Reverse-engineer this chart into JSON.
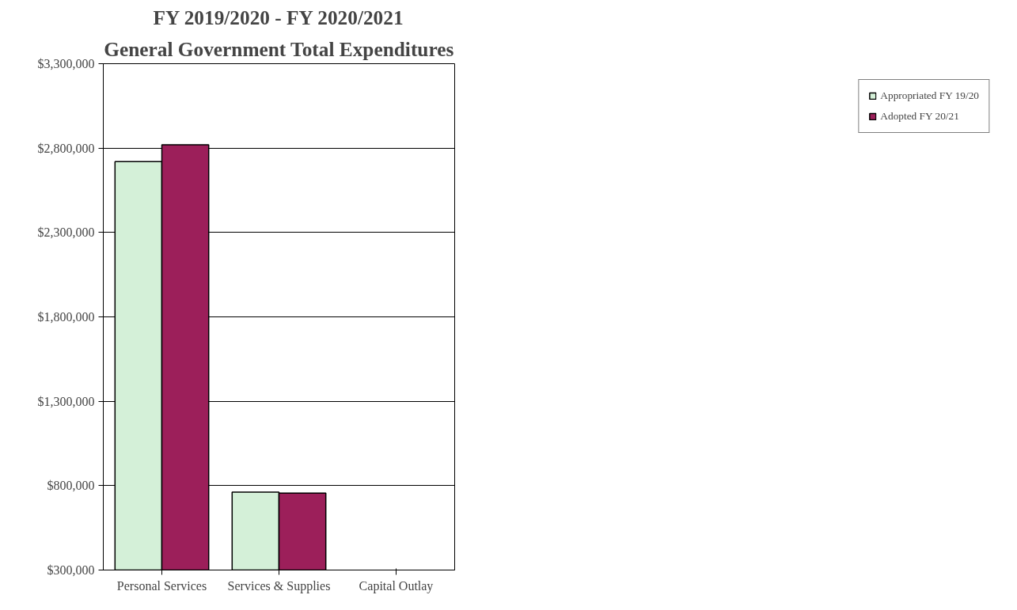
{
  "chart_data": {
    "type": "bar",
    "title": "FY 2019/2020 - FY 2020/2021",
    "subtitle": "General Government Total Expenditures",
    "categories": [
      "Personal Services",
      "Services & Supplies",
      "Capital Outlay"
    ],
    "series": [
      {
        "name": "Appropriated FY 19/20",
        "color": "#d4f0d8",
        "values": [
          2720000,
          762000,
          null
        ]
      },
      {
        "name": "Adopted FY 20/21",
        "color": "#9c1f5a",
        "values": [
          2820000,
          756000,
          null
        ]
      }
    ],
    "ylim": [
      300000,
      3300000
    ],
    "yticks": [
      {
        "value": 300000,
        "label": "$300,000"
      },
      {
        "value": 800000,
        "label": "$800,000"
      },
      {
        "value": 1300000,
        "label": "$1,300,000"
      },
      {
        "value": 1800000,
        "label": "$1,800,000"
      },
      {
        "value": 2300000,
        "label": "$2,300,000"
      },
      {
        "value": 2800000,
        "label": "$2,800,000"
      },
      {
        "value": 3300000,
        "label": "$3,300,000"
      }
    ],
    "grid": "y",
    "legend": "right"
  }
}
